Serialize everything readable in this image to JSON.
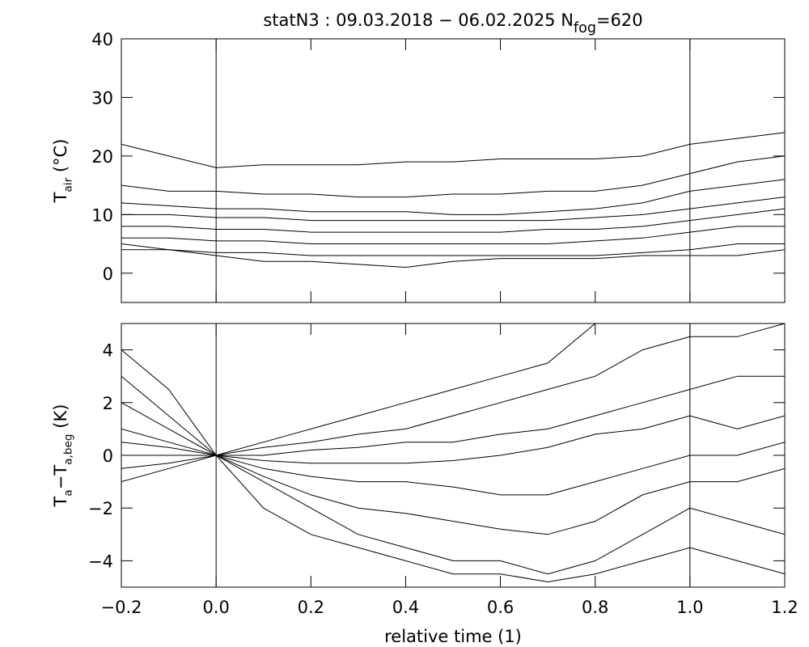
{
  "chart_data": [
    {
      "type": "line",
      "title_parts": [
        {
          "text": "statN3 : 09.03.2018 − 06.02.2025 N"
        },
        {
          "text": "fog",
          "sub": true
        },
        {
          "text": "=620"
        }
      ],
      "ylabel_parts": [
        {
          "text": "T"
        },
        {
          "text": "air",
          "sub": true
        },
        {
          "text": " (°C)"
        }
      ],
      "x": [
        -0.2,
        -0.1,
        0,
        0.1,
        0.2,
        0.3,
        0.4,
        0.5,
        0.6,
        0.7,
        0.8,
        0.9,
        1,
        1.1,
        1.2
      ],
      "xlim": [
        -0.2,
        1.2
      ],
      "xticks": [
        -0.2,
        0,
        0.2,
        0.4,
        0.6,
        0.8,
        1,
        1.2
      ],
      "ylim": [
        -5,
        40
      ],
      "yticks": [
        0,
        10,
        20,
        30,
        40
      ],
      "vlines": [
        0,
        1
      ],
      "series": [
        {
          "color": "#000000",
          "values": [
            22,
            20,
            18,
            18.5,
            18.5,
            18.5,
            19,
            19,
            19.5,
            19.5,
            19.5,
            20,
            22,
            23,
            24
          ]
        },
        {
          "color": "#000000",
          "values": [
            15,
            14,
            14,
            13.5,
            13.5,
            13,
            13,
            13.5,
            13.5,
            14,
            14,
            15,
            17,
            19,
            20
          ]
        },
        {
          "color": "#000000",
          "values": [
            12,
            11.5,
            11,
            11,
            10.5,
            10.5,
            10.5,
            10,
            10,
            10.5,
            11,
            12,
            14,
            15,
            16
          ]
        },
        {
          "color": "#000000",
          "values": [
            10,
            10,
            9.5,
            9.5,
            9,
            9,
            9,
            9,
            9,
            9,
            9.5,
            10,
            11,
            12,
            13
          ]
        },
        {
          "color": "#000000",
          "values": [
            8,
            8,
            7.5,
            7.5,
            7,
            7,
            7,
            7,
            7,
            7.5,
            7.5,
            8,
            9,
            10,
            11
          ]
        },
        {
          "color": "#000000",
          "values": [
            6,
            6,
            5.5,
            5.5,
            5,
            5,
            5,
            5,
            5,
            5,
            5.5,
            6,
            7,
            8,
            8
          ]
        },
        {
          "color": "#000000",
          "values": [
            4,
            4,
            3.5,
            3.5,
            3,
            3,
            3,
            3,
            3,
            3,
            3,
            3.5,
            4,
            5,
            5
          ]
        },
        {
          "color": "#000000",
          "values": [
            5,
            4,
            3,
            2,
            2,
            1.5,
            1,
            2,
            2.5,
            2.5,
            2.5,
            3,
            3,
            3,
            4
          ]
        }
      ]
    },
    {
      "type": "line",
      "ylabel_parts": [
        {
          "text": "T"
        },
        {
          "text": "a",
          "sub": true
        },
        {
          "text": "−T"
        },
        {
          "text": "a,beg",
          "sub": true
        },
        {
          "text": " (K)"
        }
      ],
      "xlabel": "relative time (1)",
      "x": [
        -0.2,
        -0.1,
        0,
        0.1,
        0.2,
        0.3,
        0.4,
        0.5,
        0.6,
        0.7,
        0.8,
        0.9,
        1,
        1.1,
        1.2
      ],
      "xlim": [
        -0.2,
        1.2
      ],
      "xticks": [
        {
          "value": -0.2,
          "label": "−0.2"
        },
        {
          "value": 0,
          "label": "0.0"
        },
        0.2,
        0.4,
        0.6,
        0.8,
        {
          "value": 1,
          "label": "1.0"
        },
        1.2
      ],
      "ylim": [
        -5,
        5
      ],
      "yticks": [
        {
          "value": -4,
          "label": "−4"
        },
        {
          "value": -2,
          "label": "−2"
        },
        0,
        2,
        4
      ],
      "vlines": [
        0,
        1
      ],
      "series": [
        {
          "color": "#000000",
          "values": [
            4,
            2.5,
            0,
            0.5,
            1,
            1.5,
            2,
            2.5,
            3,
            3.5,
            5,
            5,
            5,
            5,
            5
          ]
        },
        {
          "color": "#000000",
          "values": [
            2,
            1,
            0,
            0.3,
            0.5,
            0.8,
            1,
            1.5,
            2,
            2.5,
            3,
            4,
            4.5,
            4.5,
            5
          ]
        },
        {
          "color": "#000000",
          "values": [
            1,
            0.5,
            0,
            0,
            0.2,
            0.3,
            0.5,
            0.5,
            0.8,
            1,
            1.5,
            2,
            2.5,
            3,
            3
          ]
        },
        {
          "color": "#000000",
          "values": [
            0.5,
            0.3,
            0,
            -0.2,
            -0.3,
            -0.3,
            -0.3,
            -0.2,
            0,
            0.3,
            0.8,
            1,
            1.5,
            1,
            1.5
          ]
        },
        {
          "color": "#000000",
          "values": [
            -0.5,
            -0.3,
            0,
            -0.5,
            -0.8,
            -1,
            -1,
            -1.2,
            -1.5,
            -1.5,
            -1,
            -0.5,
            0,
            0,
            0.5
          ]
        },
        {
          "color": "#000000",
          "values": [
            -1,
            -0.5,
            0,
            -0.8,
            -1.5,
            -2,
            -2.2,
            -2.5,
            -2.8,
            -3,
            -2.5,
            -1.5,
            -1,
            -1,
            -0.5
          ]
        },
        {
          "color": "#000000",
          "values": [
            0,
            0,
            0,
            -1,
            -2,
            -3,
            -3.5,
            -4,
            -4,
            -4.5,
            -4,
            -3,
            -2,
            -2.5,
            -3
          ]
        },
        {
          "color": "#000000",
          "values": [
            3,
            1.5,
            0,
            -2,
            -3,
            -3.5,
            -4,
            -4.5,
            -4.5,
            -4.8,
            -4.5,
            -4,
            -3.5,
            -4,
            -4.5
          ]
        }
      ]
    }
  ]
}
